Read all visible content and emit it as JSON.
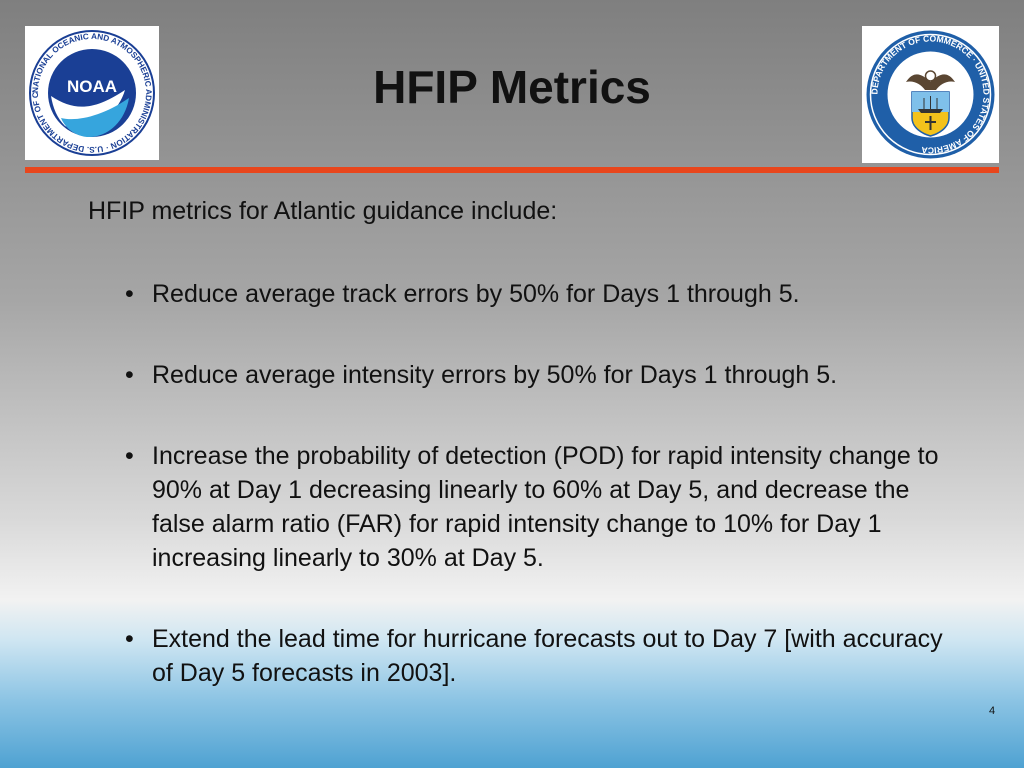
{
  "slide": {
    "title": "HFIP Metrics",
    "intro": "HFIP metrics for Atlantic guidance include:",
    "bullets": [
      "Reduce average track errors by 50% for Days 1 through 5.",
      "Reduce average intensity errors by 50% for Days 1 through 5.",
      "Increase the probability of detection (POD) for rapid intensity change to 90% at Day 1 decreasing linearly to 60% at Day 5, and decrease the false alarm ratio (FAR) for rapid intensity change to 10% for Day 1 increasing linearly to 30% at Day 5.",
      "Extend the lead time for hurricane forecasts out to Day 7 [with accuracy of Day 5 forecasts in 2003]."
    ],
    "bullet_symbol": "•",
    "page_number": "4"
  },
  "logos": {
    "noaa": {
      "icon": "noaa-logo",
      "wordmark": "NOAA",
      "ring_text": "NATIONAL OCEANIC AND ATMOSPHERIC ADMINISTRATION · U.S. DEPARTMENT OF COMMERCE"
    },
    "doc": {
      "icon": "department-of-commerce-seal",
      "ring_text": "DEPARTMENT OF COMMERCE · UNITED STATES OF AMERICA"
    }
  },
  "colors": {
    "rule": "#e8461c",
    "noaa_blue": "#1a3f95",
    "seal_blue": "#1f5fa8"
  }
}
